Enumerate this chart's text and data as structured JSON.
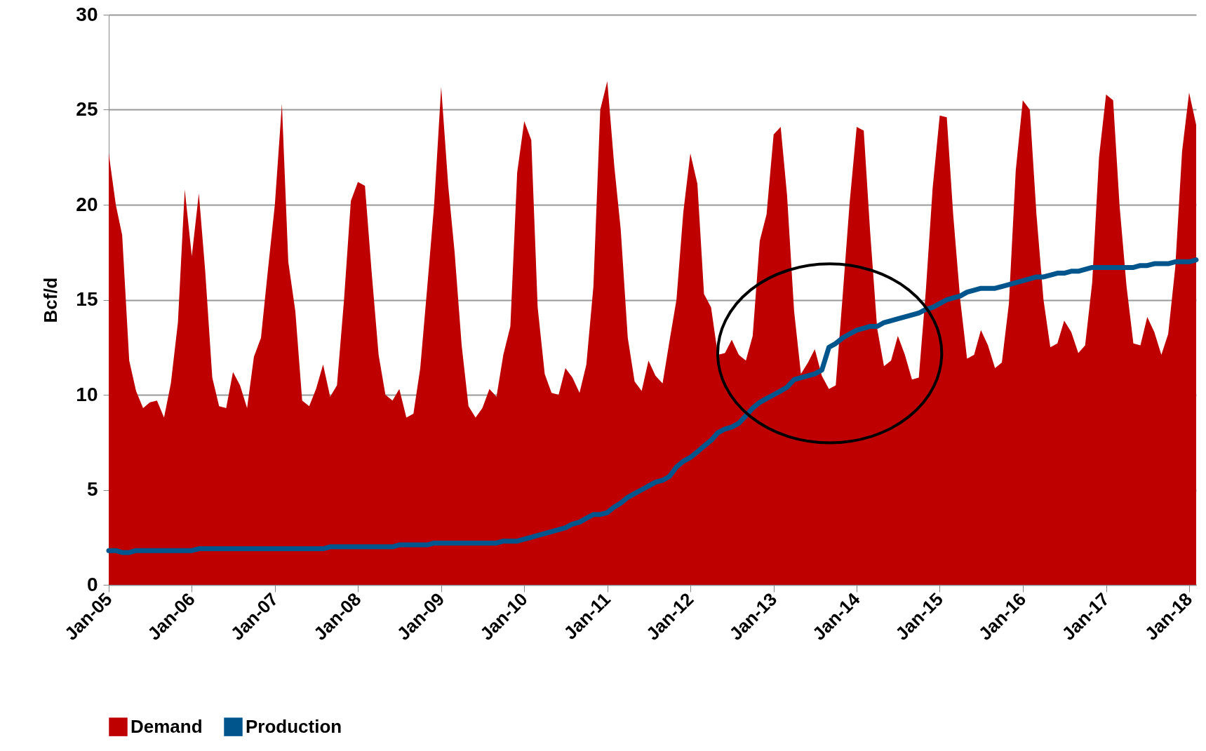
{
  "chart_data": {
    "type": "area",
    "ylabel": "Bcf/d",
    "xlim": [
      "2005-01",
      "2018-02"
    ],
    "ylim": [
      0,
      30
    ],
    "yticks": [
      0,
      5,
      10,
      15,
      20,
      25,
      30
    ],
    "xticks": [
      {
        "value": "2005-01",
        "label": "Jan-05"
      },
      {
        "value": "2006-01",
        "label": "Jan-06"
      },
      {
        "value": "2007-01",
        "label": "Jan-07"
      },
      {
        "value": "2008-01",
        "label": "Jan-08"
      },
      {
        "value": "2009-01",
        "label": "Jan-09"
      },
      {
        "value": "2010-01",
        "label": "Jan-10"
      },
      {
        "value": "2011-01",
        "label": "Jan-11"
      },
      {
        "value": "2012-01",
        "label": "Jan-12"
      },
      {
        "value": "2013-01",
        "label": "Jan-13"
      },
      {
        "value": "2014-01",
        "label": "Jan-14"
      },
      {
        "value": "2015-01",
        "label": "Jan-15"
      },
      {
        "value": "2016-01",
        "label": "Jan-16"
      },
      {
        "value": "2017-01",
        "label": "Jan-17"
      },
      {
        "value": "2018-01",
        "label": "Jan-18"
      }
    ],
    "x": [
      "2005-01",
      "2005-02",
      "2005-03",
      "2005-04",
      "2005-05",
      "2005-06",
      "2005-07",
      "2005-08",
      "2005-09",
      "2005-10",
      "2005-11",
      "2005-12",
      "2006-01",
      "2006-02",
      "2006-03",
      "2006-04",
      "2006-05",
      "2006-06",
      "2006-07",
      "2006-08",
      "2006-09",
      "2006-10",
      "2006-11",
      "2006-12",
      "2007-01",
      "2007-02",
      "2007-03",
      "2007-04",
      "2007-05",
      "2007-06",
      "2007-07",
      "2007-08",
      "2007-09",
      "2007-10",
      "2007-11",
      "2007-12",
      "2008-01",
      "2008-02",
      "2008-03",
      "2008-04",
      "2008-05",
      "2008-06",
      "2008-07",
      "2008-08",
      "2008-09",
      "2008-10",
      "2008-11",
      "2008-12",
      "2009-01",
      "2009-02",
      "2009-03",
      "2009-04",
      "2009-05",
      "2009-06",
      "2009-07",
      "2009-08",
      "2009-09",
      "2009-10",
      "2009-11",
      "2009-12",
      "2010-01",
      "2010-02",
      "2010-03",
      "2010-04",
      "2010-05",
      "2010-06",
      "2010-07",
      "2010-08",
      "2010-09",
      "2010-10",
      "2010-11",
      "2010-12",
      "2011-01",
      "2011-02",
      "2011-03",
      "2011-04",
      "2011-05",
      "2011-06",
      "2011-07",
      "2011-08",
      "2011-09",
      "2011-10",
      "2011-11",
      "2011-12",
      "2012-01",
      "2012-02",
      "2012-03",
      "2012-04",
      "2012-05",
      "2012-06",
      "2012-07",
      "2012-08",
      "2012-09",
      "2012-10",
      "2012-11",
      "2012-12",
      "2013-01",
      "2013-02",
      "2013-03",
      "2013-04",
      "2013-05",
      "2013-06",
      "2013-07",
      "2013-08",
      "2013-09",
      "2013-10",
      "2013-11",
      "2013-12",
      "2014-01",
      "2014-02",
      "2014-03",
      "2014-04",
      "2014-05",
      "2014-06",
      "2014-07",
      "2014-08",
      "2014-09",
      "2014-10",
      "2014-11",
      "2014-12",
      "2015-01",
      "2015-02",
      "2015-03",
      "2015-04",
      "2015-05",
      "2015-06",
      "2015-07",
      "2015-08",
      "2015-09",
      "2015-10",
      "2015-11",
      "2015-12",
      "2016-01",
      "2016-02",
      "2016-03",
      "2016-04",
      "2016-05",
      "2016-06",
      "2016-07",
      "2016-08",
      "2016-09",
      "2016-10",
      "2016-11",
      "2016-12",
      "2017-01",
      "2017-02",
      "2017-03",
      "2017-04",
      "2017-05",
      "2017-06",
      "2017-07",
      "2017-08",
      "2017-09",
      "2017-10",
      "2017-11",
      "2017-12",
      "2018-01",
      "2018-02"
    ],
    "series": [
      {
        "name": "Demand",
        "color": "#be0000",
        "values": [
          22.7,
          20,
          18.4,
          11.8,
          10.2,
          9.3,
          9.6,
          9.7,
          8.8,
          10.6,
          13.8,
          20.8,
          17.3,
          20.6,
          16.5,
          10.9,
          9.4,
          9.3,
          11.2,
          10.5,
          9.3,
          12.0,
          13.0,
          16.5,
          20,
          25.3,
          17,
          14.4,
          9.7,
          9.4,
          10.3,
          11.6,
          9.9,
          10.5,
          15,
          20.2,
          21.2,
          21.0,
          16.5,
          12.1,
          10.0,
          9.7,
          10.3,
          8.8,
          9.0,
          11.4,
          15.7,
          20.0,
          26.2,
          21,
          17.5,
          12.6,
          9.4,
          8.8,
          9.3,
          10.3,
          9.9,
          12.1,
          13.6,
          21.7,
          24.4,
          23.4,
          14.6,
          11.1,
          10.1,
          10.0,
          11.4,
          10.9,
          10.1,
          11.6,
          15.7,
          25.0,
          26.5,
          22,
          18.7,
          13.0,
          10.7,
          10.2,
          11.8,
          11.0,
          10.6,
          12.8,
          15.0,
          19.6,
          22.7,
          21.1,
          15.3,
          14.6,
          12.1,
          12.2,
          12.9,
          12.1,
          11.8,
          13.1,
          18.1,
          19.5,
          23.7,
          24.1,
          20.5,
          14.4,
          11.1,
          11.7,
          12.4,
          11.0,
          10.3,
          10.5,
          15.3,
          20.1,
          24.1,
          23.9,
          18.6,
          13.5,
          11.5,
          11.8,
          13.1,
          12.1,
          10.8,
          10.9,
          15.5,
          20.9,
          24.7,
          24.6,
          19.5,
          15,
          11.9,
          12.1,
          13.4,
          12.6,
          11.4,
          11.7,
          14.8,
          21.8,
          25.5,
          25.0,
          19.5,
          15.0,
          12.5,
          12.7,
          13.9,
          13.3,
          12.2,
          12.6,
          15.9,
          22.5,
          25.8,
          25.5,
          20,
          15.7,
          12.7,
          12.6,
          14.1,
          13.3,
          12.1,
          13.2,
          16.7,
          22.8,
          25.9,
          24.2
        ]
      },
      {
        "name": "Production",
        "type": "line",
        "color": "#00558c",
        "values": [
          1.8,
          1.8,
          1.7,
          1.7,
          1.8,
          1.8,
          1.8,
          1.8,
          1.8,
          1.8,
          1.8,
          1.8,
          1.8,
          1.9,
          1.9,
          1.9,
          1.9,
          1.9,
          1.9,
          1.9,
          1.9,
          1.9,
          1.9,
          1.9,
          1.9,
          1.9,
          1.9,
          1.9,
          1.9,
          1.9,
          1.9,
          1.9,
          2.0,
          2.0,
          2.0,
          2.0,
          2.0,
          2.0,
          2.0,
          2.0,
          2.0,
          2.0,
          2.1,
          2.1,
          2.1,
          2.1,
          2.1,
          2.2,
          2.2,
          2.2,
          2.2,
          2.2,
          2.2,
          2.2,
          2.2,
          2.2,
          2.2,
          2.3,
          2.3,
          2.3,
          2.4,
          2.5,
          2.6,
          2.7,
          2.8,
          2.9,
          3.0,
          3.2,
          3.3,
          3.5,
          3.7,
          3.7,
          3.8,
          4.1,
          4.3,
          4.6,
          4.8,
          5.0,
          5.2,
          5.4,
          5.5,
          5.7,
          6.2,
          6.5,
          6.7,
          7.0,
          7.3,
          7.6,
          8.0,
          8.2,
          8.3,
          8.5,
          8.9,
          9.3,
          9.6,
          9.8,
          10.0,
          10.2,
          10.4,
          10.8,
          10.9,
          11.0,
          11.1,
          11.3,
          12.5,
          12.7,
          13.0,
          13.2,
          13.4,
          13.5,
          13.6,
          13.6,
          13.8,
          13.9,
          14.0,
          14.1,
          14.2,
          14.3,
          14.5,
          14.6,
          14.8,
          15.0,
          15.1,
          15.2,
          15.4,
          15.5,
          15.6,
          15.6,
          15.6,
          15.7,
          15.8,
          15.9,
          16.0,
          16.1,
          16.2,
          16.2,
          16.3,
          16.4,
          16.4,
          16.5,
          16.5,
          16.6,
          16.7,
          16.7,
          16.7,
          16.7,
          16.7,
          16.7,
          16.7,
          16.8,
          16.8,
          16.9,
          16.9,
          16.9,
          17.0,
          17.0,
          17.0,
          17.1
        ]
      }
    ],
    "grid": "y",
    "legend": "bottom",
    "marker": "none",
    "line_style": "solid"
  }
}
